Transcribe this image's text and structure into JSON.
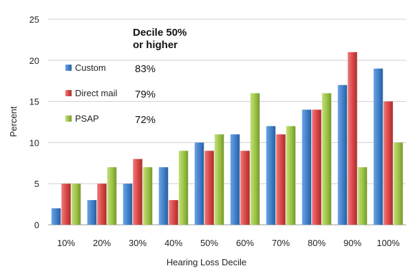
{
  "chart_data": {
    "type": "bar",
    "title": "",
    "xlabel": "Hearing Loss Decile",
    "ylabel": "Percent",
    "ylim": [
      0,
      25
    ],
    "yticks": [
      0,
      5,
      10,
      15,
      20,
      25
    ],
    "grid": true,
    "categories": [
      "10%",
      "20%",
      "30%",
      "40%",
      "50%",
      "60%",
      "70%",
      "80%",
      "90%",
      "100%"
    ],
    "series": [
      {
        "name": "Custom",
        "color": "#3f7fc9",
        "values": [
          2,
          3,
          5,
          7,
          10,
          11,
          12,
          14,
          17,
          19
        ],
        "summary": "83%"
      },
      {
        "name": "Direct mail",
        "color": "#d94545",
        "values": [
          5,
          5,
          8,
          3,
          9,
          9,
          11,
          14,
          21,
          15
        ],
        "summary": "79%"
      },
      {
        "name": "PSAP",
        "color": "#9bc245",
        "values": [
          5,
          7,
          7,
          9,
          11,
          16,
          12,
          16,
          7,
          10
        ],
        "summary": "72%"
      }
    ],
    "legend_position": "top-left",
    "annotation_title_line1": "Decile 50%",
    "annotation_title_line2": "or higher"
  }
}
